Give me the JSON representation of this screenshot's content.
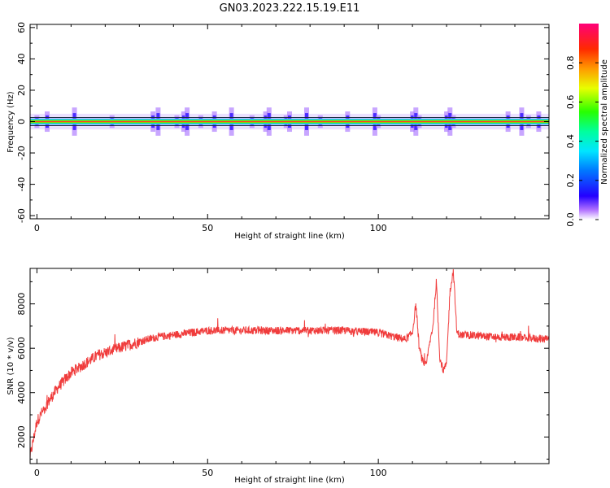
{
  "title": "GN03.2023.222.15.19.E11",
  "chart_data": [
    {
      "type": "heatmap",
      "xlabel": "Height of straight line (km)",
      "ylabel": "Frequency (Hz)",
      "xlim": [
        -2,
        150
      ],
      "ylim": [
        -62,
        62
      ],
      "x_ticks": [
        0,
        50,
        100
      ],
      "y_ticks": [
        -60,
        -40,
        -20,
        0,
        20,
        40,
        60
      ],
      "band_center_hz": 0,
      "band_half_width_hz": 2,
      "spikes_km": [
        0,
        3,
        11,
        22,
        34,
        35.5,
        41,
        43,
        44,
        48,
        52,
        57,
        63,
        67,
        68,
        73,
        74,
        79,
        83,
        91,
        99,
        100,
        110,
        111,
        112,
        120,
        121,
        122,
        138,
        142,
        144,
        147
      ],
      "colorbar": {
        "label": "Normalized spectral amplitude",
        "range": [
          0,
          1
        ],
        "ticks": [
          0.0,
          0.2,
          0.4,
          0.6,
          0.8
        ]
      }
    },
    {
      "type": "line",
      "xlabel": "Height of straight line (km)",
      "ylabel": "SNR (10 * v/v)",
      "xlim": [
        -2,
        150
      ],
      "ylim": [
        800,
        9600
      ],
      "x_ticks": [
        0,
        50,
        100
      ],
      "y_ticks": [
        2000,
        4000,
        6000,
        8000
      ],
      "color": "#f03c3c",
      "series": [
        {
          "x": [
            -2,
            0,
            3,
            6,
            10,
            14,
            18,
            22,
            26,
            30,
            35,
            40,
            45,
            50,
            60,
            70,
            80,
            90,
            100,
            105,
            108,
            110,
            111,
            112,
            113,
            114,
            115,
            116,
            117,
            118,
            119,
            120,
            121,
            122,
            123,
            124,
            126,
            130,
            135,
            140,
            145,
            150
          ],
          "values": [
            1100,
            2700,
            3500,
            4200,
            4900,
            5300,
            5700,
            5900,
            6100,
            6300,
            6500,
            6600,
            6700,
            6800,
            6800,
            6800,
            6800,
            6800,
            6700,
            6500,
            6400,
            6700,
            8000,
            6000,
            5400,
            5200,
            6200,
            7000,
            9000,
            5600,
            5000,
            5300,
            8600,
            9500,
            6700,
            6600,
            6600,
            6550,
            6500,
            6500,
            6450,
            6400
          ]
        }
      ]
    }
  ]
}
